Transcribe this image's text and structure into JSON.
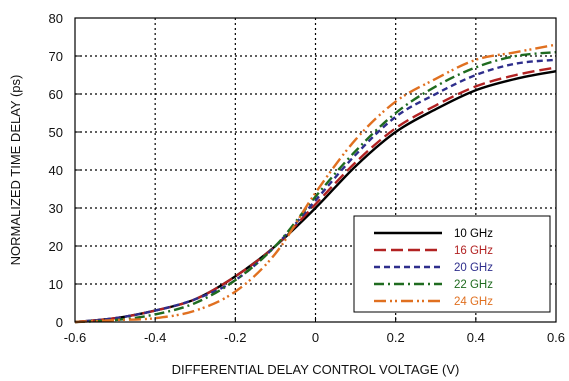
{
  "chart_data": {
    "type": "line",
    "title": "",
    "xlabel": "DIFFERENTIAL DELAY CONTROL VOLTAGE (V)",
    "ylabel": "NORMALIZED TIME DELAY (ps)",
    "xlim": [
      -0.6,
      0.6
    ],
    "ylim": [
      0,
      80
    ],
    "xticks": [
      -0.6,
      -0.4,
      -0.2,
      0,
      0.2,
      0.4,
      0.6
    ],
    "xtick_labels": [
      "-0.6",
      "-0.4",
      "-0.2",
      "0",
      "0.2",
      "0.4",
      "0.6"
    ],
    "yticks": [
      0,
      10,
      20,
      30,
      40,
      50,
      60,
      70,
      80
    ],
    "ytick_labels": [
      "0",
      "10",
      "20",
      "30",
      "40",
      "50",
      "60",
      "70",
      "80"
    ],
    "grid": true,
    "legend_position": "bottom-right",
    "series": [
      {
        "name": "10 GHz",
        "color": "#000000",
        "dash": "solid",
        "x": [
          -0.6,
          -0.5,
          -0.4,
          -0.3,
          -0.2,
          -0.1,
          0,
          0.1,
          0.2,
          0.3,
          0.4,
          0.5,
          0.6
        ],
        "y": [
          0,
          1,
          3,
          6,
          12,
          20,
          30,
          41,
          50,
          56,
          61,
          64,
          66
        ]
      },
      {
        "name": "16 GHz",
        "color": "#b22222",
        "dash": "longdash",
        "x": [
          -0.6,
          -0.5,
          -0.4,
          -0.3,
          -0.2,
          -0.1,
          0,
          0.1,
          0.2,
          0.3,
          0.4,
          0.5,
          0.6
        ],
        "y": [
          0,
          1,
          3,
          6,
          12,
          20,
          31,
          42,
          51,
          57,
          62,
          65,
          67
        ]
      },
      {
        "name": "20 GHz",
        "color": "#2e2e8c",
        "dash": "shortdash",
        "x": [
          -0.6,
          -0.5,
          -0.4,
          -0.3,
          -0.2,
          -0.1,
          0,
          0.1,
          0.2,
          0.3,
          0.4,
          0.5,
          0.6
        ],
        "y": [
          0,
          1,
          3,
          6,
          11,
          20,
          32,
          44,
          54,
          60,
          65,
          68,
          69
        ]
      },
      {
        "name": "22 GHz",
        "color": "#1f6b1f",
        "dash": "dashdot",
        "x": [
          -0.6,
          -0.5,
          -0.4,
          -0.3,
          -0.2,
          -0.1,
          0,
          0.1,
          0.2,
          0.3,
          0.4,
          0.5,
          0.6
        ],
        "y": [
          0,
          0.5,
          2,
          5,
          11,
          20,
          33,
          45,
          55,
          62,
          67,
          70,
          71
        ]
      },
      {
        "name": "24 GHz",
        "color": "#e07020",
        "dash": "dashdotdot",
        "x": [
          -0.6,
          -0.5,
          -0.4,
          -0.3,
          -0.2,
          -0.1,
          0,
          0.1,
          0.2,
          0.3,
          0.4,
          0.5,
          0.6
        ],
        "y": [
          0,
          0.5,
          1,
          3,
          8,
          18,
          34,
          48,
          58,
          64,
          69,
          71,
          73
        ]
      }
    ]
  }
}
